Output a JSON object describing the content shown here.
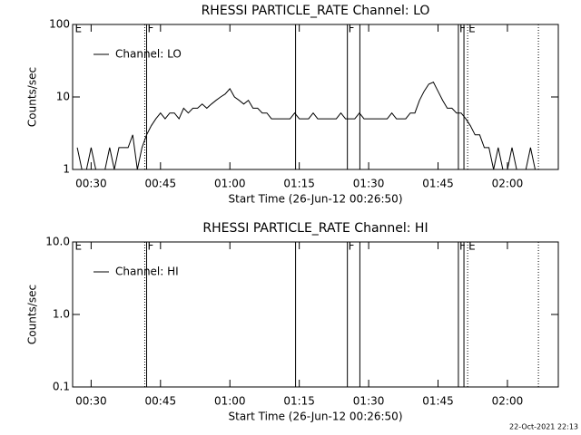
{
  "chart_data": [
    {
      "type": "line",
      "title": "RHESSI PARTICLE_RATE Channel: LO",
      "xlabel": "Start Time (26-Jun-12 00:26:50)",
      "ylabel": "Counts/sec",
      "log_y": true,
      "legend": "upper left",
      "x": [
        27,
        28,
        29,
        30,
        31,
        32,
        33,
        34,
        35,
        36,
        37,
        38,
        39,
        40,
        41,
        42,
        43,
        44,
        45,
        46,
        47,
        48,
        49,
        50,
        51,
        52,
        53,
        54,
        55,
        56,
        57,
        58,
        59,
        60,
        61,
        62,
        63,
        64,
        65,
        66,
        67,
        68,
        69,
        70,
        71,
        72,
        73,
        74,
        75,
        76,
        77,
        78,
        79,
        80,
        81,
        82,
        83,
        84,
        85,
        86,
        87,
        88,
        89,
        90,
        91,
        92,
        93,
        94,
        95,
        96,
        97,
        98,
        99,
        100,
        101,
        102,
        103,
        104,
        105,
        106,
        107,
        108,
        109,
        110,
        111,
        112,
        113,
        114,
        115,
        116,
        117,
        118,
        119,
        120,
        121,
        122,
        123,
        124,
        125,
        126,
        127,
        128,
        129,
        130
      ],
      "series": [
        {
          "name": "Channel: LO",
          "color": "#000000",
          "values": [
            2,
            1,
            1,
            2,
            1,
            1,
            1,
            2,
            1,
            2,
            2,
            2,
            3,
            1,
            2,
            3,
            4,
            5,
            6,
            5,
            6,
            6,
            5,
            7,
            6,
            7,
            7,
            8,
            7,
            8,
            9,
            10,
            11,
            13,
            10,
            9,
            8,
            9,
            7,
            7,
            6,
            6,
            5,
            5,
            5,
            5,
            5,
            6,
            5,
            5,
            5,
            6,
            5,
            5,
            5,
            5,
            5,
            6,
            5,
            5,
            5,
            6,
            5,
            5,
            5,
            5,
            5,
            5,
            6,
            5,
            5,
            5,
            6,
            6,
            9,
            12,
            15,
            16,
            12,
            9,
            7,
            7,
            6,
            6,
            5,
            4,
            3,
            3,
            2,
            2,
            1,
            2,
            1,
            1,
            2,
            1,
            1,
            1,
            2,
            1,
            1,
            1,
            1,
            1
          ]
        }
      ],
      "xlim": [
        26,
        131
      ],
      "xticks": [
        {
          "value": 30,
          "label": "00:30"
        },
        {
          "value": 45,
          "label": "00:45"
        },
        {
          "value": 60,
          "label": "01:00"
        },
        {
          "value": 75,
          "label": "01:15"
        },
        {
          "value": 90,
          "label": "01:30"
        },
        {
          "value": 105,
          "label": "01:45"
        },
        {
          "value": 120,
          "label": "02:00"
        }
      ],
      "ylim": [
        1,
        100
      ],
      "yticks": [
        1,
        10,
        100
      ],
      "flag_lines": [
        {
          "x": 41.6,
          "style": "dotted"
        },
        {
          "x": 42.0,
          "style": "solid"
        },
        {
          "x": 74.2,
          "style": "solid"
        },
        {
          "x": 85.4,
          "style": "solid"
        },
        {
          "x": 88.1,
          "style": "solid"
        },
        {
          "x": 109.4,
          "style": "solid"
        },
        {
          "x": 110.6,
          "style": "solid"
        },
        {
          "x": 111.4,
          "style": "dotted"
        },
        {
          "x": 126.7,
          "style": "dotted"
        }
      ],
      "flag_labels": [
        {
          "x": 26.3,
          "label": "E"
        },
        {
          "x": 42.0,
          "label": "F"
        },
        {
          "x": 85.4,
          "label": "F"
        },
        {
          "x": 109.4,
          "label": "F"
        },
        {
          "x": 111.4,
          "label": "E"
        }
      ]
    },
    {
      "type": "line",
      "title": "RHESSI PARTICLE_RATE Channel: HI",
      "xlabel": "Start Time (26-Jun-12 00:26:50)",
      "ylabel": "Counts/sec",
      "log_y": true,
      "legend": "upper left",
      "x": [],
      "series": [
        {
          "name": "Channel: HI",
          "color": "#000000",
          "values": []
        }
      ],
      "xlim": [
        26,
        131
      ],
      "xticks": [
        {
          "value": 30,
          "label": "00:30"
        },
        {
          "value": 45,
          "label": "00:45"
        },
        {
          "value": 60,
          "label": "01:00"
        },
        {
          "value": 75,
          "label": "01:15"
        },
        {
          "value": 90,
          "label": "01:30"
        },
        {
          "value": 105,
          "label": "01:45"
        },
        {
          "value": 120,
          "label": "02:00"
        }
      ],
      "ylim": [
        0.1,
        10
      ],
      "yticks": [
        {
          "value": 0.1,
          "label": "0.1"
        },
        {
          "value": 1,
          "label": "1.0"
        },
        {
          "value": 10,
          "label": "10.0"
        }
      ],
      "flag_lines": [
        {
          "x": 41.6,
          "style": "dotted"
        },
        {
          "x": 42.0,
          "style": "solid"
        },
        {
          "x": 74.2,
          "style": "solid"
        },
        {
          "x": 85.4,
          "style": "solid"
        },
        {
          "x": 88.1,
          "style": "solid"
        },
        {
          "x": 109.4,
          "style": "solid"
        },
        {
          "x": 110.6,
          "style": "solid"
        },
        {
          "x": 111.4,
          "style": "dotted"
        },
        {
          "x": 126.7,
          "style": "dotted"
        }
      ],
      "flag_labels": [
        {
          "x": 26.3,
          "label": "E"
        },
        {
          "x": 42.0,
          "label": "F"
        },
        {
          "x": 85.4,
          "label": "F"
        },
        {
          "x": 109.4,
          "label": "F"
        },
        {
          "x": 111.4,
          "label": "E"
        }
      ]
    }
  ],
  "footer": "22-Oct-2021 22:13"
}
